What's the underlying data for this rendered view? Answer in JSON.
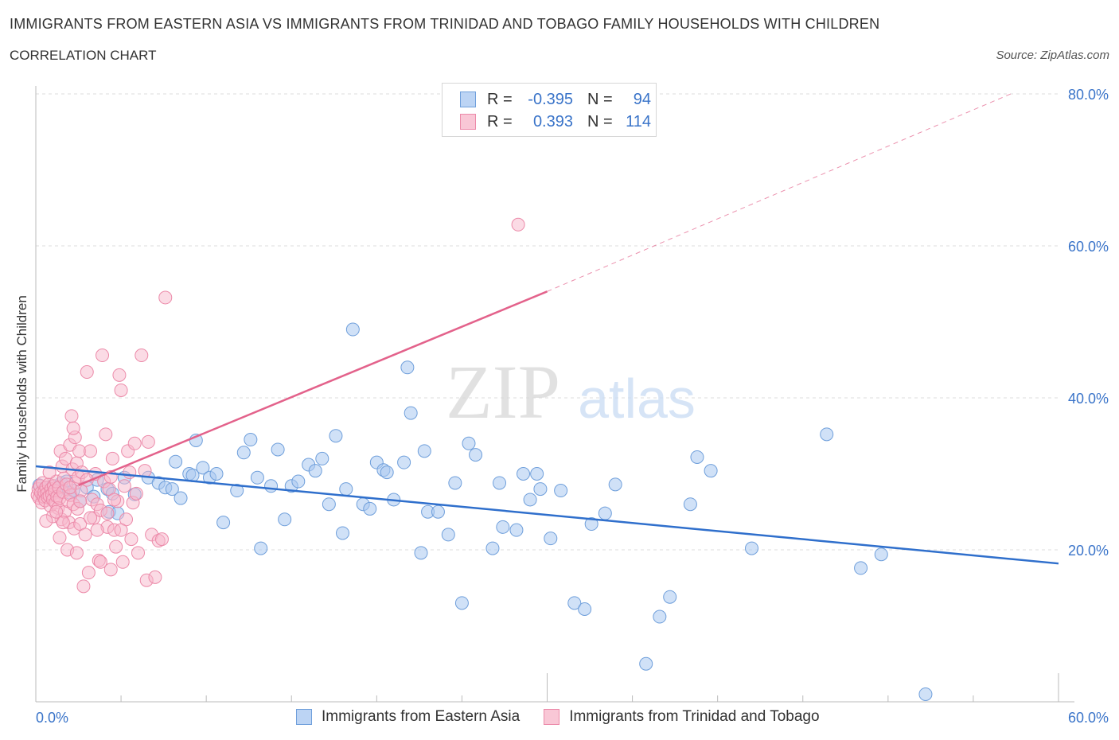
{
  "header": {
    "title": "IMMIGRANTS FROM EASTERN ASIA VS IMMIGRANTS FROM TRINIDAD AND TOBAGO FAMILY HOUSEHOLDS WITH CHILDREN",
    "subtitle": "CORRELATION CHART",
    "source": "Source: ZipAtlas.com"
  },
  "legend": {
    "series1": {
      "r_label": "R =",
      "r_value": "-0.395",
      "n_label": "N =",
      "n_value": "94"
    },
    "series2": {
      "r_label": "R =",
      "r_value": "0.393",
      "n_label": "N =",
      "n_value": "114"
    }
  },
  "watermark": {
    "zip": "ZIP",
    "atlas": "atlas"
  },
  "colors": {
    "blue_fill": "#a9c8f0",
    "blue_stroke": "#6f9fdb",
    "blue_line": "#2f6fcc",
    "pink_fill": "#f7b8cb",
    "pink_stroke": "#ec8aa9",
    "pink_line": "#e3628b",
    "grid": "#dedede",
    "axis_text": "#3a74c9"
  },
  "chart_data": {
    "type": "scatter",
    "title": "IMMIGRANTS FROM EASTERN ASIA VS IMMIGRANTS FROM TRINIDAD AND TOBAGO FAMILY HOUSEHOLDS WITH CHILDREN",
    "subtitle": "CORRELATION CHART",
    "xlabel": "",
    "ylabel": "Family Households with Children",
    "xlim": [
      0,
      60
    ],
    "ylim": [
      0,
      80
    ],
    "x_tick_labels": [
      "0.0%",
      "60.0%"
    ],
    "y_tick_labels": [
      "20.0%",
      "40.0%",
      "60.0%",
      "80.0%"
    ],
    "y_ticks": [
      20,
      40,
      60,
      80
    ],
    "grid": true,
    "legend_position": "top-center",
    "series": [
      {
        "name": "Immigrants from Eastern Asia",
        "color": "#a9c8f0",
        "R": -0.395,
        "N": 94,
        "trend": {
          "x": [
            0,
            60
          ],
          "y": [
            31,
            18.2
          ],
          "extends_beyond_data": false
        },
        "points": [
          [
            0.2,
            28.5
          ],
          [
            0.4,
            27.8
          ],
          [
            0.6,
            28.2
          ],
          [
            0.8,
            27.2
          ],
          [
            1.0,
            28.4
          ],
          [
            1.2,
            27.6
          ],
          [
            1.5,
            28.8
          ],
          [
            1.8,
            29.0
          ],
          [
            2.0,
            27.5
          ],
          [
            2.2,
            27.8
          ],
          [
            2.6,
            26.4
          ],
          [
            3.0,
            28.2
          ],
          [
            3.4,
            27.0
          ],
          [
            3.6,
            29.2
          ],
          [
            4.2,
            28.0
          ],
          [
            4.3,
            25.0
          ],
          [
            4.5,
            27.4
          ],
          [
            4.8,
            24.8
          ],
          [
            5.2,
            29.5
          ],
          [
            5.8,
            27.3
          ],
          [
            6.6,
            29.5
          ],
          [
            7.2,
            28.8
          ],
          [
            7.6,
            28.2
          ],
          [
            8.0,
            28.0
          ],
          [
            8.2,
            31.6
          ],
          [
            8.5,
            26.8
          ],
          [
            9.0,
            30.0
          ],
          [
            9.2,
            29.8
          ],
          [
            9.4,
            34.4
          ],
          [
            9.8,
            30.8
          ],
          [
            10.2,
            29.5
          ],
          [
            10.6,
            30.0
          ],
          [
            11.0,
            23.6
          ],
          [
            11.8,
            27.8
          ],
          [
            12.2,
            32.8
          ],
          [
            12.6,
            34.5
          ],
          [
            13.0,
            29.5
          ],
          [
            13.2,
            20.2
          ],
          [
            13.8,
            28.4
          ],
          [
            14.2,
            33.2
          ],
          [
            14.6,
            24.0
          ],
          [
            15.0,
            28.4
          ],
          [
            15.4,
            29.0
          ],
          [
            16.0,
            31.2
          ],
          [
            16.4,
            30.4
          ],
          [
            16.8,
            32.0
          ],
          [
            17.2,
            26.0
          ],
          [
            17.6,
            35.0
          ],
          [
            18.0,
            22.2
          ],
          [
            18.2,
            28.0
          ],
          [
            18.6,
            49.0
          ],
          [
            19.2,
            26.0
          ],
          [
            19.6,
            25.4
          ],
          [
            20.0,
            31.5
          ],
          [
            20.4,
            30.5
          ],
          [
            20.6,
            30.2
          ],
          [
            21.0,
            26.6
          ],
          [
            21.6,
            31.5
          ],
          [
            21.8,
            44.0
          ],
          [
            22.0,
            38.0
          ],
          [
            22.6,
            19.6
          ],
          [
            22.8,
            33.0
          ],
          [
            23.0,
            25.0
          ],
          [
            23.6,
            25.0
          ],
          [
            24.2,
            22.0
          ],
          [
            24.6,
            28.8
          ],
          [
            25.0,
            13.0
          ],
          [
            25.4,
            34.0
          ],
          [
            25.8,
            32.5
          ],
          [
            26.8,
            20.2
          ],
          [
            27.2,
            28.8
          ],
          [
            27.4,
            23.0
          ],
          [
            28.2,
            22.6
          ],
          [
            28.6,
            30.0
          ],
          [
            29.0,
            26.6
          ],
          [
            29.4,
            30.0
          ],
          [
            29.6,
            28.0
          ],
          [
            30.2,
            21.5
          ],
          [
            30.8,
            27.8
          ],
          [
            31.6,
            13.0
          ],
          [
            32.2,
            12.2
          ],
          [
            32.6,
            23.4
          ],
          [
            33.4,
            24.8
          ],
          [
            34.0,
            28.6
          ],
          [
            35.8,
            5.0
          ],
          [
            36.6,
            11.2
          ],
          [
            37.2,
            13.8
          ],
          [
            38.4,
            26.0
          ],
          [
            38.8,
            32.2
          ],
          [
            39.6,
            30.4
          ],
          [
            42.0,
            20.2
          ],
          [
            46.4,
            35.2
          ],
          [
            48.4,
            17.6
          ],
          [
            49.6,
            19.4
          ],
          [
            52.2,
            1.0
          ]
        ]
      },
      {
        "name": "Immigrants from Trinidad and Tobago",
        "color": "#f7b8cb",
        "R": 0.393,
        "N": 114,
        "trend": {
          "x": [
            2.5,
            30
          ],
          "y": [
            28.5,
            54
          ],
          "dashed_to": [
            57.2,
            80
          ]
        },
        "points": [
          [
            0.1,
            27.2
          ],
          [
            0.15,
            28.0
          ],
          [
            0.2,
            26.8
          ],
          [
            0.25,
            28.4
          ],
          [
            0.3,
            27.5
          ],
          [
            0.35,
            26.2
          ],
          [
            0.4,
            28.8
          ],
          [
            0.45,
            27.0
          ],
          [
            0.5,
            27.6
          ],
          [
            0.55,
            26.5
          ],
          [
            0.6,
            28.2
          ],
          [
            0.65,
            27.4
          ],
          [
            0.7,
            26.9
          ],
          [
            0.75,
            28.6
          ],
          [
            0.8,
            27.1
          ],
          [
            0.85,
            25.8
          ],
          [
            0.9,
            28.0
          ],
          [
            0.95,
            27.3
          ],
          [
            1.0,
            26.6
          ],
          [
            1.05,
            28.4
          ],
          [
            1.1,
            27.8
          ],
          [
            1.15,
            26.2
          ],
          [
            1.2,
            29.0
          ],
          [
            1.25,
            27.0
          ],
          [
            1.3,
            25.5
          ],
          [
            1.35,
            28.2
          ],
          [
            1.4,
            26.8
          ],
          [
            1.45,
            33.0
          ],
          [
            1.5,
            24.0
          ],
          [
            1.55,
            31.0
          ],
          [
            1.6,
            27.6
          ],
          [
            1.65,
            29.4
          ],
          [
            1.7,
            25.0
          ],
          [
            1.75,
            32.0
          ],
          [
            1.8,
            28.6
          ],
          [
            1.85,
            20.0
          ],
          [
            1.9,
            26.4
          ],
          [
            1.95,
            23.6
          ],
          [
            2.0,
            33.8
          ],
          [
            2.05,
            27.2
          ],
          [
            2.1,
            37.6
          ],
          [
            2.15,
            30.6
          ],
          [
            2.2,
            26.0
          ],
          [
            2.25,
            22.8
          ],
          [
            2.3,
            34.8
          ],
          [
            2.35,
            28.8
          ],
          [
            2.4,
            31.4
          ],
          [
            2.45,
            25.4
          ],
          [
            2.5,
            29.6
          ],
          [
            2.55,
            33.0
          ],
          [
            2.6,
            23.4
          ],
          [
            2.65,
            27.8
          ],
          [
            2.7,
            30.2
          ],
          [
            2.8,
            15.2
          ],
          [
            2.9,
            22.0
          ],
          [
            3.0,
            43.4
          ],
          [
            3.1,
            17.0
          ],
          [
            3.2,
            33.0
          ],
          [
            3.3,
            26.6
          ],
          [
            3.4,
            24.2
          ],
          [
            3.5,
            30.0
          ],
          [
            3.6,
            26.0
          ],
          [
            3.7,
            18.6
          ],
          [
            3.8,
            25.2
          ],
          [
            3.9,
            45.6
          ],
          [
            4.0,
            29.0
          ],
          [
            4.1,
            35.2
          ],
          [
            4.2,
            23.0
          ],
          [
            4.3,
            28.0
          ],
          [
            4.4,
            17.4
          ],
          [
            4.5,
            32.0
          ],
          [
            4.6,
            22.6
          ],
          [
            4.7,
            20.4
          ],
          [
            4.8,
            26.4
          ],
          [
            4.9,
            43.0
          ],
          [
            5.0,
            41.0
          ],
          [
            5.1,
            18.4
          ],
          [
            5.2,
            28.4
          ],
          [
            5.3,
            24.0
          ],
          [
            5.4,
            33.0
          ],
          [
            5.5,
            30.2
          ],
          [
            5.6,
            21.4
          ],
          [
            5.7,
            26.2
          ],
          [
            5.8,
            34.0
          ],
          [
            5.9,
            27.4
          ],
          [
            6.0,
            19.6
          ],
          [
            6.2,
            45.6
          ],
          [
            6.4,
            30.4
          ],
          [
            6.5,
            16.0
          ],
          [
            6.6,
            34.2
          ],
          [
            6.8,
            22.0
          ],
          [
            7.0,
            16.4
          ],
          [
            7.2,
            21.2
          ],
          [
            7.4,
            21.4
          ],
          [
            7.6,
            53.2
          ],
          [
            28.3,
            62.8
          ],
          [
            1.0,
            24.4
          ],
          [
            1.6,
            23.6
          ],
          [
            2.6,
            26.4
          ],
          [
            3.2,
            24.2
          ],
          [
            3.6,
            22.6
          ],
          [
            4.2,
            24.8
          ],
          [
            4.6,
            26.6
          ],
          [
            5.0,
            22.6
          ],
          [
            2.0,
            28.2
          ],
          [
            1.2,
            25.0
          ],
          [
            0.8,
            30.2
          ],
          [
            2.4,
            19.6
          ],
          [
            3.8,
            18.4
          ],
          [
            4.4,
            29.6
          ],
          [
            1.4,
            21.6
          ],
          [
            2.2,
            36.0
          ],
          [
            3.0,
            29.2
          ],
          [
            0.6,
            23.8
          ]
        ]
      }
    ]
  }
}
